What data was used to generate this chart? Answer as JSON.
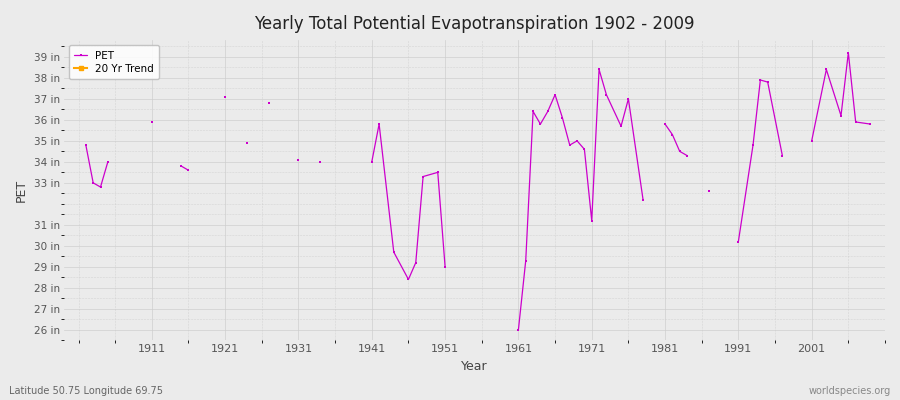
{
  "title": "Yearly Total Potential Evapotranspiration 1902 - 2009",
  "xlabel": "Year",
  "ylabel": "PET",
  "footer_left": "Latitude 50.75 Longitude 69.75",
  "footer_right": "worldspecies.org",
  "ylim": [
    25.5,
    39.8
  ],
  "xlim": [
    1899,
    2011
  ],
  "ytick_labels": [
    "26 in",
    "27 in",
    "28 in",
    "29 in",
    "30 in",
    "31 in",
    "33 in",
    "34 in",
    "35 in",
    "36 in",
    "37 in",
    "38 in",
    "39 in"
  ],
  "ytick_values": [
    26,
    27,
    28,
    29,
    30,
    31,
    33,
    34,
    35,
    36,
    37,
    38,
    39
  ],
  "xtick_values": [
    1911,
    1921,
    1931,
    1941,
    1951,
    1961,
    1971,
    1981,
    1991,
    2001
  ],
  "pet_color": "#CC00CC",
  "trend_color": "#FFA500",
  "bg_color": "#EBEBEB",
  "pet_data": [
    [
      1902,
      34.8
    ],
    [
      1903,
      33.0
    ],
    [
      1904,
      32.8
    ],
    [
      1905,
      34.0
    ],
    [
      1911,
      35.9
    ],
    [
      1915,
      33.8
    ],
    [
      1916,
      33.6
    ],
    [
      1921,
      37.1
    ],
    [
      1924,
      34.9
    ],
    [
      1927,
      36.8
    ],
    [
      1931,
      34.1
    ],
    [
      1934,
      34.0
    ],
    [
      1941,
      34.0
    ],
    [
      1942,
      35.8
    ],
    [
      1944,
      29.7
    ],
    [
      1946,
      28.4
    ],
    [
      1947,
      29.2
    ],
    [
      1948,
      33.3
    ],
    [
      1950,
      33.5
    ],
    [
      1951,
      29.0
    ],
    [
      1961,
      26.0
    ],
    [
      1962,
      29.3
    ],
    [
      1963,
      36.4
    ],
    [
      1964,
      35.8
    ],
    [
      1965,
      36.4
    ],
    [
      1966,
      37.2
    ],
    [
      1967,
      36.1
    ],
    [
      1968,
      34.8
    ],
    [
      1969,
      35.0
    ],
    [
      1970,
      34.6
    ],
    [
      1971,
      31.2
    ],
    [
      1972,
      38.4
    ],
    [
      1973,
      37.2
    ],
    [
      1975,
      35.7
    ],
    [
      1976,
      37.0
    ],
    [
      1978,
      32.2
    ],
    [
      1981,
      35.8
    ],
    [
      1982,
      35.3
    ],
    [
      1983,
      34.5
    ],
    [
      1984,
      34.3
    ],
    [
      1987,
      32.6
    ],
    [
      1991,
      30.2
    ],
    [
      1993,
      34.8
    ],
    [
      1994,
      37.9
    ],
    [
      1995,
      37.8
    ],
    [
      1997,
      34.3
    ],
    [
      2001,
      35.0
    ],
    [
      2003,
      38.4
    ],
    [
      2005,
      36.2
    ],
    [
      2006,
      39.2
    ],
    [
      2007,
      35.9
    ],
    [
      2009,
      35.8
    ]
  ],
  "legend_items": [
    {
      "label": "PET",
      "color": "#CC00CC"
    },
    {
      "label": "20 Yr Trend",
      "color": "#FFA500"
    }
  ]
}
